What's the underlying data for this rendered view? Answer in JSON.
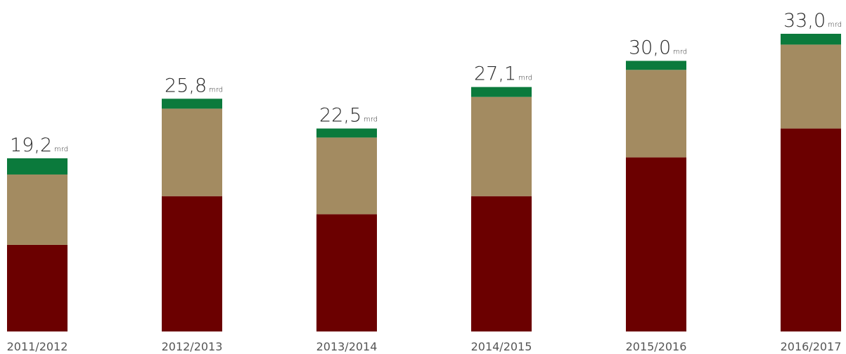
{
  "chart_data": {
    "type": "bar",
    "stacked": true,
    "categories": [
      "2011/2012",
      "2012/2013",
      "2013/2014",
      "2014/2015",
      "2015/2016",
      "2016/2017"
    ],
    "series": [
      {
        "values": [
          9.6,
          15.0,
          13.0,
          15.0,
          19.3,
          22.5
        ]
      },
      {
        "values": [
          7.8,
          9.7,
          8.5,
          11.0,
          9.7,
          9.3
        ]
      },
      {
        "values": [
          1.8,
          1.1,
          1.0,
          1.1,
          1.0,
          1.2
        ]
      }
    ],
    "totals": [
      "19,2",
      "25,8",
      "22,5",
      "27,1",
      "30,0",
      "33,0"
    ],
    "unit": "mrd",
    "ylim": [
      0,
      33
    ],
    "grid": false,
    "legend": "none"
  },
  "colors": {
    "series": [
      "#6b0000",
      "#a38b61",
      "#0b7a3c"
    ],
    "label_text": "#2b2b2b",
    "tick_text": "#555555"
  }
}
